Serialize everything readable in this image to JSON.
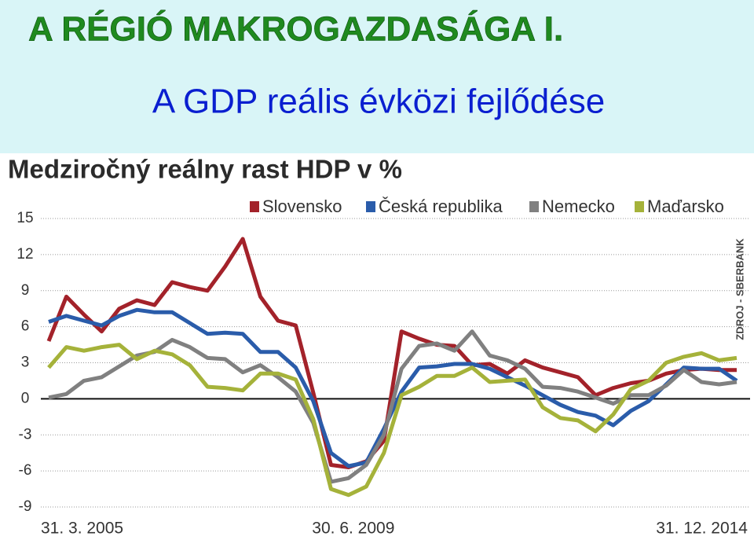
{
  "slide": {
    "title": "A RÉGIÓ MAKROGAZDASÁGA I.",
    "subtitle": "A GDP reális évközi fejlődése"
  },
  "chart_data": {
    "type": "line",
    "title": "Medziročný reálny rast HDP v %",
    "source": "ZDROJ - SBERBANK",
    "categories": [
      "31. 3. 2005",
      null,
      null,
      null,
      null,
      null,
      null,
      null,
      null,
      null,
      null,
      null,
      null,
      null,
      null,
      null,
      null,
      "30. 6. 2009",
      null,
      null,
      null,
      null,
      null,
      null,
      null,
      null,
      null,
      null,
      null,
      null,
      null,
      null,
      null,
      null,
      null,
      null,
      null,
      null,
      null,
      "31. 12. 2014"
    ],
    "series": [
      {
        "name": "Slovensko",
        "color": "#a3222a",
        "values": [
          4.8,
          8.5,
          7,
          5.6,
          7.5,
          8.2,
          7.8,
          9.7,
          9.3,
          9,
          11,
          13.3,
          8.5,
          6.5,
          6.1,
          0.5,
          -5.5,
          -5.7,
          -5.2,
          -3.5,
          5.6,
          5,
          4.5,
          4.4,
          2.8,
          2.9,
          2.1,
          3.2,
          2.6,
          2.2,
          1.8,
          0.3,
          0.9,
          1.3,
          1.5,
          2.1,
          2.4,
          2.5,
          2.4,
          2.4
        ]
      },
      {
        "name": "Česká republika",
        "color": "#2a5caa",
        "values": [
          6.4,
          6.9,
          6.5,
          6.1,
          6.9,
          7.4,
          7.2,
          7.2,
          6.3,
          5.4,
          5.5,
          5.4,
          3.9,
          3.9,
          2.6,
          -0.2,
          -4.5,
          -5.6,
          -5.3,
          -2.5,
          0.6,
          2.6,
          2.7,
          2.9,
          2.9,
          2.5,
          1.8,
          1.1,
          0.3,
          -0.5,
          -1.1,
          -1.4,
          -2.2,
          -1,
          -0.2,
          1.2,
          2.6,
          2.5,
          2.5,
          1.5
        ]
      },
      {
        "name": "Nemecko",
        "color": "#808080",
        "values": [
          0.1,
          0.4,
          1.5,
          1.8,
          2.7,
          3.6,
          3.9,
          4.9,
          4.3,
          3.4,
          3.3,
          2.2,
          2.8,
          1.8,
          0.6,
          -2,
          -6.9,
          -6.6,
          -5.5,
          -3,
          2.5,
          4.4,
          4.6,
          4,
          5.6,
          3.6,
          3.2,
          2.5,
          1,
          0.9,
          0.6,
          0.1,
          -0.4,
          0.3,
          0.3,
          1.1,
          2.4,
          1.4,
          1.2,
          1.4
        ]
      },
      {
        "name": "Maďarsko",
        "color": "#a5b23a",
        "values": [
          2.6,
          4.3,
          4,
          4.3,
          4.5,
          3.3,
          4,
          3.7,
          2.8,
          1,
          0.9,
          0.7,
          2.1,
          2.1,
          1.6,
          -1.7,
          -7.5,
          -8,
          -7.3,
          -4.5,
          0.3,
          1,
          1.9,
          1.9,
          2.6,
          1.4,
          1.5,
          1.6,
          -0.7,
          -1.6,
          -1.8,
          -2.7,
          -1.3,
          0.8,
          1.5,
          3,
          3.5,
          3.8,
          3.2,
          3.4
        ]
      }
    ],
    "ylim": [
      -9,
      15
    ],
    "yticks": [
      -9,
      -6,
      -3,
      0,
      3,
      6,
      9,
      12,
      15
    ],
    "grid": true,
    "legend": "top"
  }
}
